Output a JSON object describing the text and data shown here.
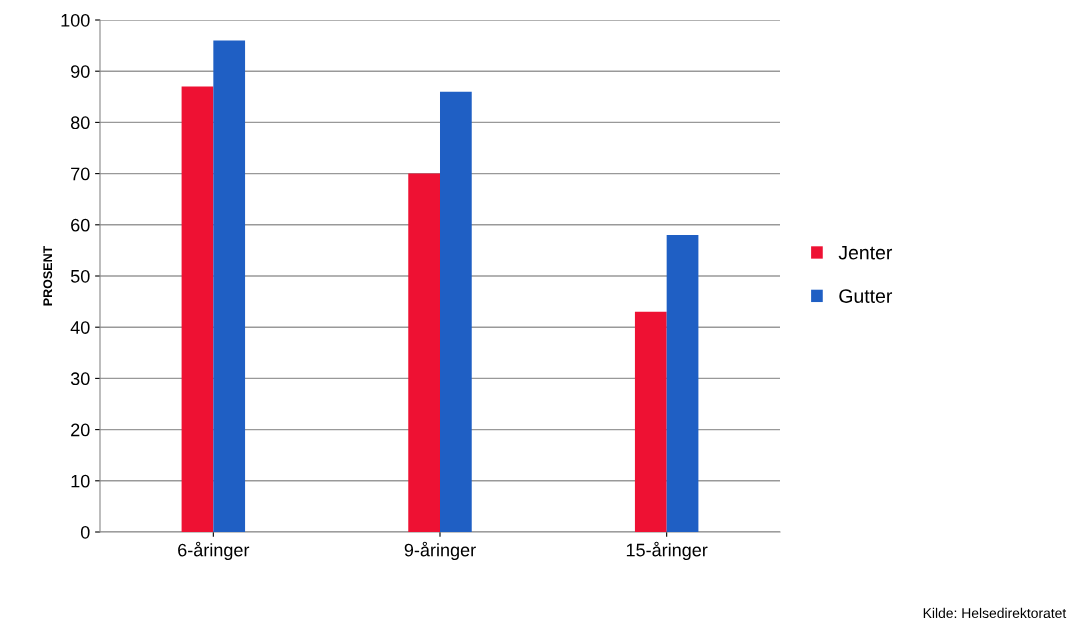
{
  "chart_data": {
    "type": "bar",
    "ylabel": "PROSENT",
    "categories": [
      "6-åringer",
      "9-åringer",
      "15-åringer"
    ],
    "series": [
      {
        "name": "Jenter",
        "color": "#ee1133",
        "values": [
          87,
          70,
          43
        ]
      },
      {
        "name": "Gutter",
        "color": "#1f5fc4",
        "values": [
          96,
          86,
          58
        ]
      }
    ],
    "ylim": [
      0,
      100
    ],
    "yticks": [
      0,
      10,
      20,
      30,
      40,
      50,
      60,
      70,
      80,
      90,
      100
    ],
    "grid": "y",
    "legend": "right",
    "annotations": [
      "Kilde: Helsedirektoratet"
    ]
  }
}
